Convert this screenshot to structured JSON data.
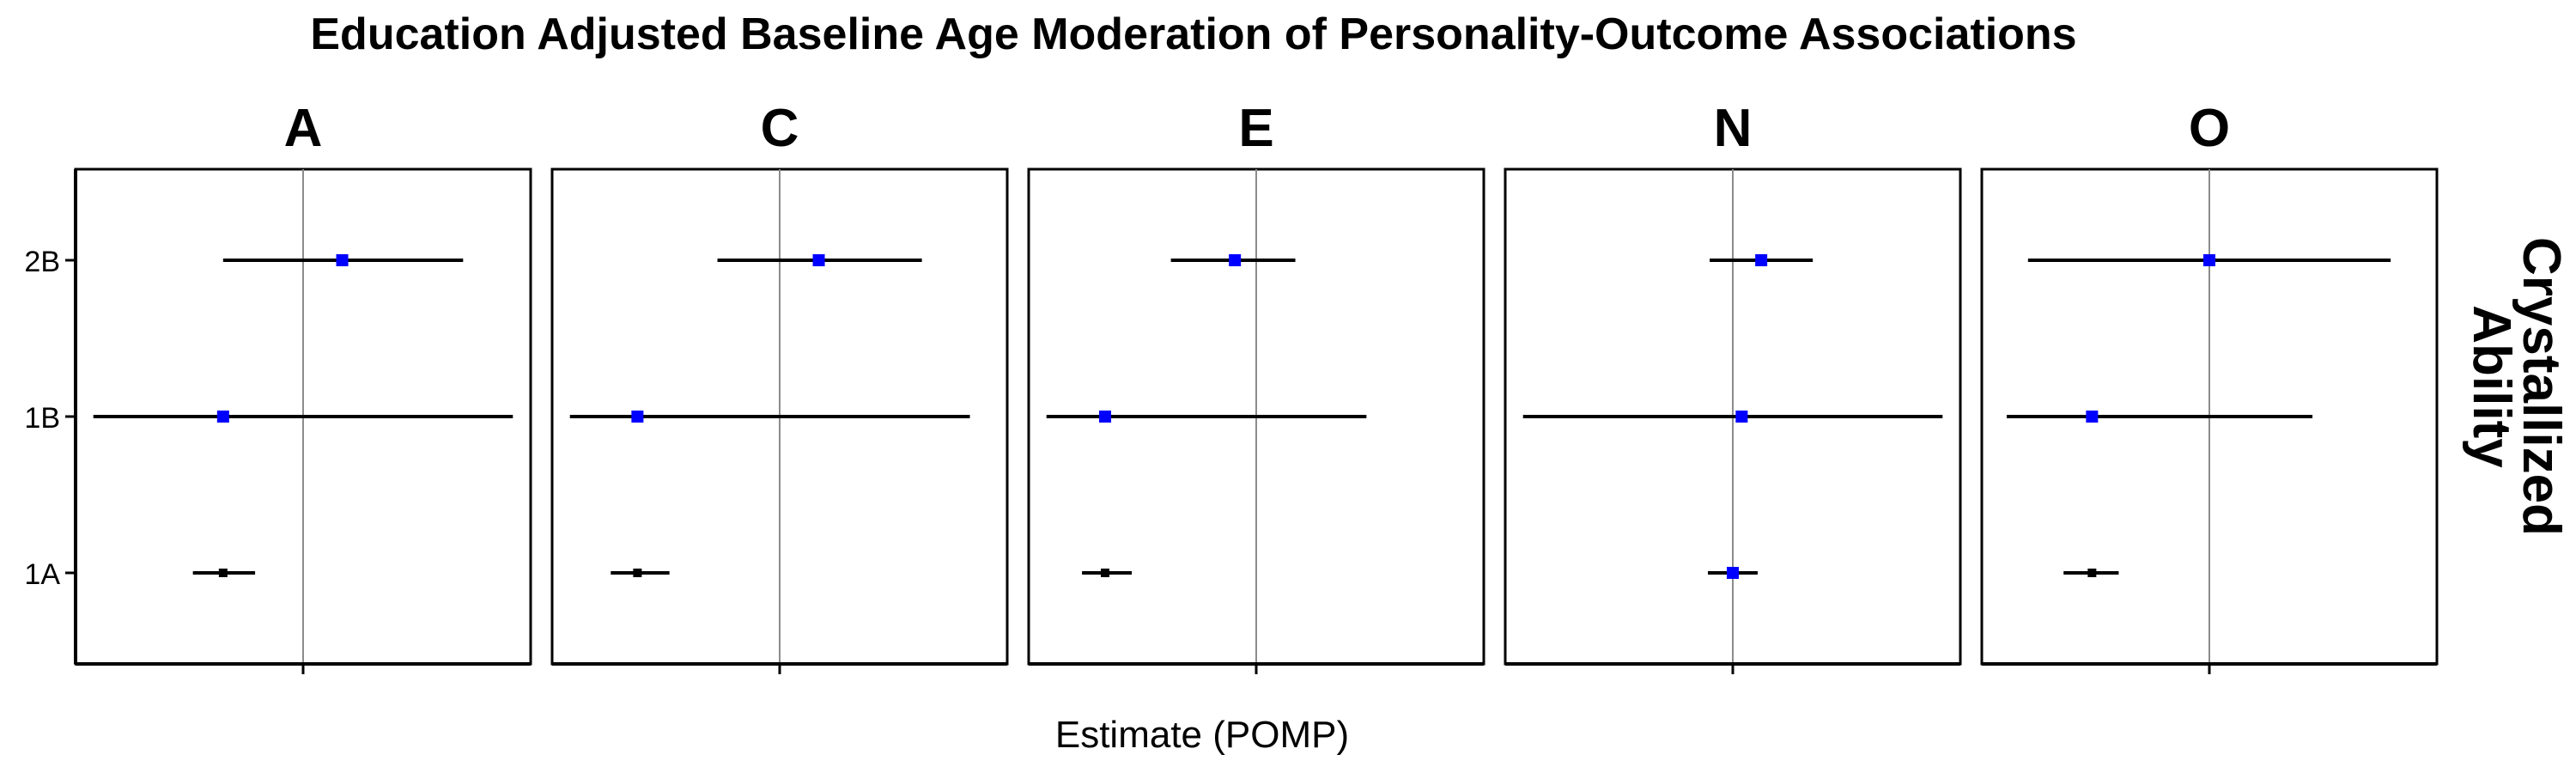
{
  "chart_data": {
    "type": "forest",
    "title": "Education Adjusted Baseline Age Moderation of Personality-Outcome Associations",
    "xlabel": "Estimate (POMP)",
    "facet_row_label": "Crystallized Ability",
    "y_categories": [
      "1A",
      "1B",
      "2B"
    ],
    "colors": {
      "significant": "#0000ff",
      "nonsignificant": "#000000"
    },
    "panels": [
      {
        "label": "A",
        "points": [
          {
            "category": "2B",
            "estimate": 0.22,
            "lower": -0.45,
            "upper": 0.9,
            "color": "#0000ff"
          },
          {
            "category": "1B",
            "estimate": -0.45,
            "lower": -1.18,
            "upper": 1.18,
            "color": "#0000ff"
          },
          {
            "category": "1A",
            "estimate": -0.45,
            "lower": -0.62,
            "upper": -0.27,
            "color": "#000000"
          }
        ]
      },
      {
        "label": "C",
        "points": [
          {
            "category": "2B",
            "estimate": 0.22,
            "lower": -0.35,
            "upper": 0.8,
            "color": "#0000ff"
          },
          {
            "category": "1B",
            "estimate": -0.8,
            "lower": -1.18,
            "upper": 1.07,
            "color": "#0000ff"
          },
          {
            "category": "1A",
            "estimate": -0.8,
            "lower": -0.95,
            "upper": -0.62,
            "color": "#000000"
          }
        ]
      },
      {
        "label": "E",
        "points": [
          {
            "category": "2B",
            "estimate": -0.12,
            "lower": -0.48,
            "upper": 0.22,
            "color": "#0000ff"
          },
          {
            "category": "1B",
            "estimate": -0.85,
            "lower": -1.18,
            "upper": 0.62,
            "color": "#0000ff"
          },
          {
            "category": "1A",
            "estimate": -0.85,
            "lower": -0.98,
            "upper": -0.7,
            "color": "#000000"
          }
        ]
      },
      {
        "label": "N",
        "points": [
          {
            "category": "2B",
            "estimate": 0.16,
            "lower": -0.13,
            "upper": 0.45,
            "color": "#0000ff"
          },
          {
            "category": "1B",
            "estimate": 0.05,
            "lower": -1.18,
            "upper": 1.18,
            "color": "#0000ff"
          },
          {
            "category": "1A",
            "estimate": 0.0,
            "lower": -0.14,
            "upper": 0.14,
            "color": "#0000ff"
          }
        ]
      },
      {
        "label": "O",
        "points": [
          {
            "category": "2B",
            "estimate": 0.0,
            "lower": -1.02,
            "upper": 1.02,
            "color": "#0000ff"
          },
          {
            "category": "1B",
            "estimate": -0.66,
            "lower": -1.14,
            "upper": 0.58,
            "color": "#0000ff"
          },
          {
            "category": "1A",
            "estimate": -0.66,
            "lower": -0.82,
            "upper": -0.51,
            "color": "#000000"
          }
        ]
      }
    ],
    "xlim": [
      -1.28,
      1.28
    ],
    "x_ticks": [
      0
    ],
    "x_tick_labels": [
      ""
    ],
    "grid": false
  }
}
